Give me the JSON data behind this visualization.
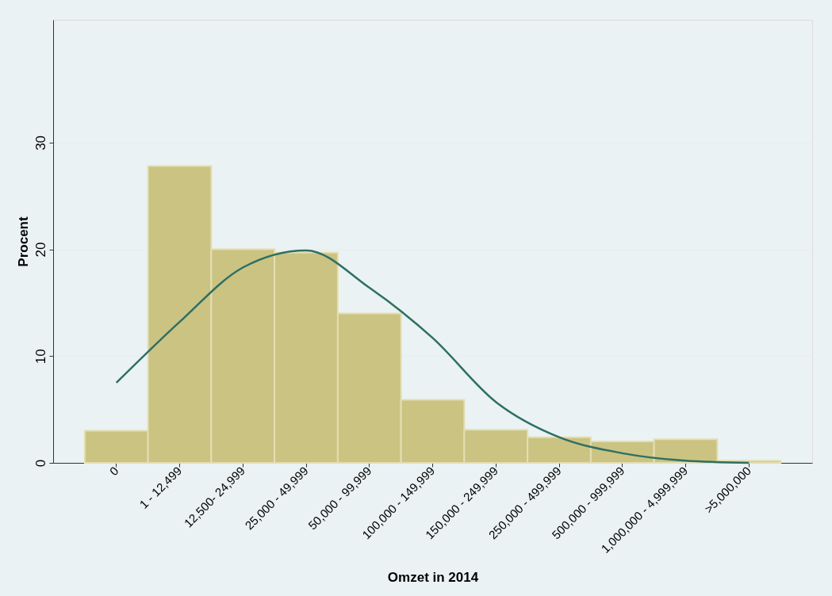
{
  "chart_data": {
    "type": "bar",
    "xlabel": "Omzet in 2014",
    "ylabel": "Procent",
    "categories": [
      "0",
      "1 - 12,499",
      "12,500- 24,999",
      "25,000 - 49,999",
      "50,000 - 99,999",
      "100,000 - 149,999",
      "150,000 - 249,999",
      "250,000 - 499,999",
      "500,000 - 999,999",
      "1,000,000 - 4,999,999",
      ">5,000,000"
    ],
    "series": [
      {
        "color": "#cbc382",
        "values": [
          3.0,
          27.8,
          20.0,
          19.7,
          14.0,
          5.9,
          3.1,
          2.4,
          2.0,
          2.2,
          0.2
        ]
      },
      {
        "type": "line",
        "color": "#2e6f63",
        "values": [
          7.5,
          13.2,
          18.3,
          19.9,
          16.4,
          11.7,
          5.7,
          2.4,
          0.9,
          0.2,
          0.0
        ]
      }
    ],
    "ylim": [
      0,
      41.5
    ],
    "yticks": [
      0,
      10,
      20,
      30
    ],
    "grid": "y"
  }
}
